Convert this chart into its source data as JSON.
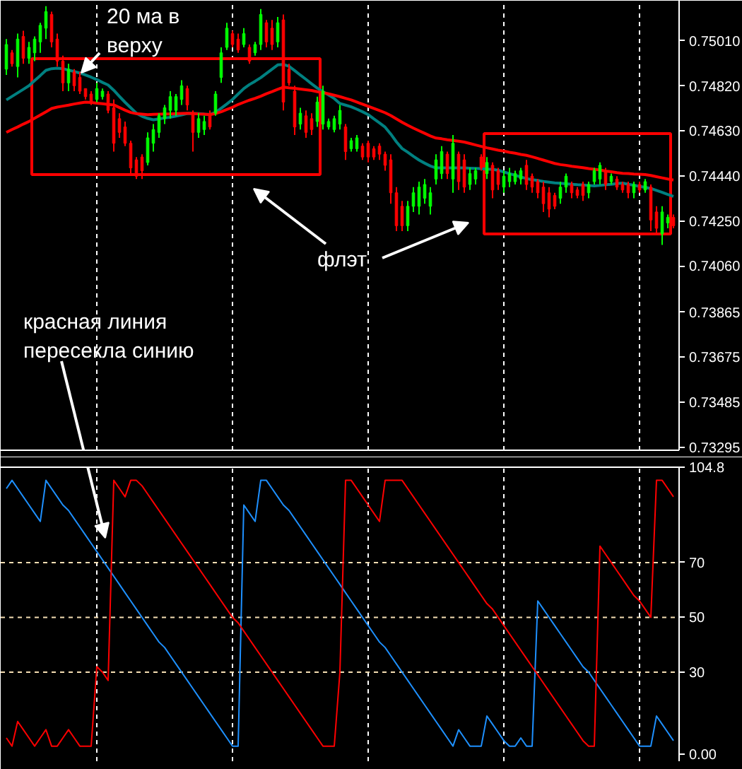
{
  "chart_data": [
    {
      "type": "candlestick",
      "categories": [
        null,
        null,
        null,
        null,
        null,
        null,
        null,
        null,
        null,
        null,
        null,
        null,
        null,
        null,
        null,
        null,
        null,
        null,
        null,
        null,
        null,
        null,
        null,
        null,
        null,
        null,
        null,
        null,
        null,
        null,
        null,
        null,
        null,
        null,
        null,
        null,
        null,
        null,
        null,
        null,
        null,
        null,
        null,
        null,
        null,
        null,
        null,
        null,
        null,
        null,
        null,
        null,
        null,
        null,
        null,
        null,
        null,
        null,
        null,
        null,
        null,
        null,
        null,
        null,
        null,
        null,
        null,
        null,
        null,
        null,
        null,
        null,
        null,
        null,
        null,
        null,
        null,
        null,
        null,
        null,
        null,
        null,
        null,
        null,
        null,
        null,
        null,
        null,
        null,
        null,
        null,
        null,
        null,
        null,
        null,
        null,
        null,
        null,
        null,
        null,
        null,
        null,
        null,
        null,
        null,
        null,
        null,
        null,
        null,
        null,
        null,
        null,
        null,
        null,
        null,
        null,
        null,
        null,
        null
      ],
      "ohlc": [
        [
          0.74891,
          0.75018,
          0.74867,
          0.74995
        ],
        [
          0.7496,
          0.74972,
          0.74902,
          0.74914
        ],
        [
          0.74902,
          0.75041,
          0.74856,
          0.75018
        ],
        [
          0.75029,
          0.75053,
          0.74914,
          0.74937
        ],
        [
          0.74937,
          0.75006,
          0.74914,
          0.74983
        ],
        [
          0.7496,
          0.75029,
          0.74925,
          0.75018
        ],
        [
          0.75006,
          0.75087,
          0.7496,
          0.75076
        ],
        [
          0.75064,
          0.75157,
          0.75018,
          0.75134
        ],
        [
          0.75122,
          0.75134,
          0.74983,
          0.75006
        ],
        [
          0.75018,
          0.75041,
          0.74902,
          0.74925
        ],
        [
          0.74925,
          0.74948,
          0.74798,
          0.74833
        ],
        [
          0.74833,
          0.74914,
          0.74798,
          0.74891
        ],
        [
          0.74879,
          0.74891,
          0.74798,
          0.74821
        ],
        [
          0.74856,
          0.74879,
          0.74786,
          0.74798
        ],
        [
          0.74809,
          0.74809,
          0.74763,
          0.74775
        ],
        [
          0.74786,
          0.74798,
          0.7474,
          0.74752
        ],
        [
          0.74763,
          0.74833,
          0.74752,
          0.74809
        ],
        [
          0.74775,
          0.74809,
          0.74763,
          0.74798
        ],
        [
          0.74786,
          0.74798,
          0.74705,
          0.74717
        ],
        [
          0.74728,
          0.74763,
          0.74543,
          0.74578
        ],
        [
          0.74682,
          0.74705,
          0.74601,
          0.74624
        ],
        [
          0.74647,
          0.7467,
          0.74566,
          0.74578
        ],
        [
          0.74578,
          0.74589,
          0.7445,
          0.74474
        ],
        [
          0.74508,
          0.7452,
          0.74427,
          0.74439
        ],
        [
          0.7452,
          0.74532,
          0.74427,
          0.74462
        ],
        [
          0.74497,
          0.74624,
          0.74485,
          0.74601
        ],
        [
          0.74578,
          0.74659,
          0.74543,
          0.74636
        ],
        [
          0.74624,
          0.74705,
          0.74601,
          0.74694
        ],
        [
          0.74682,
          0.7474,
          0.74659,
          0.74728
        ],
        [
          0.74717,
          0.74798,
          0.74682,
          0.74775
        ],
        [
          0.74717,
          0.74786,
          0.74694,
          0.74775
        ],
        [
          0.74763,
          0.74844,
          0.7474,
          0.74821
        ],
        [
          0.74809,
          0.74821,
          0.74717,
          0.7474
        ],
        [
          0.74705,
          0.74717,
          0.74543,
          0.74624
        ],
        [
          0.74624,
          0.74705,
          0.74601,
          0.74682
        ],
        [
          0.74636,
          0.74694,
          0.74613,
          0.7467
        ],
        [
          0.74694,
          0.74717,
          0.74636,
          0.74647
        ],
        [
          0.74705,
          0.74798,
          0.74694,
          0.74786
        ],
        [
          0.74856,
          0.74983,
          0.74833,
          0.7496
        ],
        [
          0.74983,
          0.75087,
          0.74972,
          0.75064
        ],
        [
          0.75041,
          0.75053,
          0.74983,
          0.74995
        ],
        [
          0.75018,
          0.75041,
          0.7496,
          0.74972
        ],
        [
          0.74995,
          0.75064,
          0.74983,
          0.75041
        ],
        [
          0.74983,
          0.74995,
          0.74914,
          0.74925
        ],
        [
          0.7496,
          0.75006,
          0.74948,
          0.74995
        ],
        [
          0.74995,
          0.75145,
          0.74972,
          0.75122
        ],
        [
          0.75087,
          0.75099,
          0.74983,
          0.75006
        ],
        [
          0.75064,
          0.75099,
          0.74972,
          0.74995
        ],
        [
          0.75006,
          0.75111,
          0.74983,
          0.75087
        ],
        [
          0.75099,
          0.75122,
          0.74717,
          0.74752
        ],
        [
          0.74891,
          0.74914,
          0.74821,
          0.74833
        ],
        [
          0.74798,
          0.74821,
          0.74613,
          0.74647
        ],
        [
          0.74659,
          0.74728,
          0.74636,
          0.74705
        ],
        [
          0.74694,
          0.74717,
          0.74601,
          0.74624
        ],
        [
          0.74682,
          0.74705,
          0.74613,
          0.74636
        ],
        [
          0.7467,
          0.74775,
          0.74647,
          0.74752
        ],
        [
          0.74659,
          0.74821,
          0.74636,
          0.74798
        ],
        [
          0.74647,
          0.74682,
          0.74636,
          0.7467
        ],
        [
          0.74636,
          0.74694,
          0.74624,
          0.74682
        ],
        [
          0.74659,
          0.7474,
          0.74636,
          0.74717
        ],
        [
          0.74647,
          0.74659,
          0.74508,
          0.74543
        ],
        [
          0.74555,
          0.74601,
          0.74543,
          0.74589
        ],
        [
          0.74555,
          0.74613,
          0.74543,
          0.74601
        ],
        [
          0.74566,
          0.74578,
          0.74508,
          0.7452
        ],
        [
          0.74578,
          0.74589,
          0.74497,
          0.7452
        ],
        [
          0.74555,
          0.74566,
          0.74508,
          0.7452
        ],
        [
          0.74566,
          0.74578,
          0.74508,
          0.74532
        ],
        [
          0.74532,
          0.74543,
          0.74462,
          0.74485
        ],
        [
          0.74508,
          0.74532,
          0.74323,
          0.74369
        ],
        [
          0.74369,
          0.74393,
          0.74207,
          0.7423
        ],
        [
          0.74312,
          0.74335,
          0.74207,
          0.7423
        ],
        [
          0.7423,
          0.74335,
          0.74207,
          0.74312
        ],
        [
          0.74312,
          0.74393,
          0.74288,
          0.74369
        ],
        [
          0.74312,
          0.74416,
          0.74277,
          0.74393
        ],
        [
          0.74346,
          0.74427,
          0.74323,
          0.74404
        ],
        [
          0.74312,
          0.74393,
          0.74277,
          0.74369
        ],
        [
          0.74427,
          0.74532,
          0.74404,
          0.74508
        ],
        [
          0.7445,
          0.74566,
          0.74427,
          0.74543
        ],
        [
          0.74532,
          0.74543,
          0.74427,
          0.7445
        ],
        [
          0.74427,
          0.74613,
          0.74369,
          0.74578
        ],
        [
          0.74532,
          0.74543,
          0.74381,
          0.74416
        ],
        [
          0.74508,
          0.74532,
          0.74369,
          0.74393
        ],
        [
          0.74404,
          0.74474,
          0.74381,
          0.7445
        ],
        [
          0.74427,
          0.74474,
          0.74404,
          0.74462
        ],
        [
          0.7452,
          0.74532,
          0.74462,
          0.74474
        ],
        [
          0.7445,
          0.7452,
          0.74427,
          0.74497
        ],
        [
          0.74485,
          0.74497,
          0.74346,
          0.74381
        ],
        [
          0.74462,
          0.74474,
          0.74381,
          0.74404
        ],
        [
          0.74393,
          0.74462,
          0.74369,
          0.74439
        ],
        [
          0.74416,
          0.74474,
          0.74393,
          0.7445
        ],
        [
          0.74416,
          0.74462,
          0.74404,
          0.7445
        ],
        [
          0.74427,
          0.74474,
          0.74404,
          0.74462
        ],
        [
          0.74485,
          0.74508,
          0.74381,
          0.74404
        ],
        [
          0.74439,
          0.7445,
          0.74369,
          0.74393
        ],
        [
          0.74416,
          0.74427,
          0.74346,
          0.74369
        ],
        [
          0.74393,
          0.74416,
          0.74288,
          0.74323
        ],
        [
          0.74369,
          0.74393,
          0.74265,
          0.743
        ],
        [
          0.74358,
          0.74369,
          0.743,
          0.74312
        ],
        [
          0.74346,
          0.74416,
          0.74323,
          0.74393
        ],
        [
          0.74393,
          0.7445,
          0.74369,
          0.74439
        ],
        [
          0.74404,
          0.74416,
          0.74346,
          0.74369
        ],
        [
          0.74381,
          0.74393,
          0.74346,
          0.74358
        ],
        [
          0.74404,
          0.74416,
          0.74335,
          0.74358
        ],
        [
          0.74369,
          0.74416,
          0.74346,
          0.74404
        ],
        [
          0.74416,
          0.74474,
          0.74404,
          0.74462
        ],
        [
          0.74427,
          0.74497,
          0.74404,
          0.74485
        ],
        [
          0.74462,
          0.74474,
          0.74381,
          0.74404
        ],
        [
          0.74416,
          0.7445,
          0.74404,
          0.74439
        ],
        [
          0.74427,
          0.74439,
          0.74381,
          0.74393
        ],
        [
          0.74404,
          0.74416,
          0.74369,
          0.74381
        ],
        [
          0.74404,
          0.74416,
          0.74346,
          0.74369
        ],
        [
          0.74369,
          0.74416,
          0.74346,
          0.74404
        ],
        [
          0.74404,
          0.74416,
          0.74369,
          0.74381
        ],
        [
          0.74381,
          0.74427,
          0.74369,
          0.74416
        ],
        [
          0.74393,
          0.74404,
          0.74207,
          0.74254
        ],
        [
          0.74288,
          0.74312,
          0.74196,
          0.74219
        ],
        [
          0.74196,
          0.74312,
          0.74149,
          0.74288
        ],
        [
          0.74242,
          0.74277,
          0.74219,
          0.74265
        ],
        [
          0.74265,
          0.74277,
          0.74219,
          0.7423
        ]
      ],
      "colors": [
        "#00ff00",
        "#ff0000",
        "#00ff00",
        "#ff0000",
        "#00ff00",
        "#00ff00",
        "#00ff00",
        "#00ff00",
        "#ff0000",
        "#ff0000",
        "#ff0000",
        "#00ff00",
        "#ff0000",
        "#ff0000",
        "#ff0000",
        "#ff0000",
        "#00ff00",
        "#00ff00",
        "#ff0000",
        "#ff0000",
        "#ff0000",
        "#ff0000",
        "#ff0000",
        "#ff0000",
        "#ff0000",
        "#00ff00",
        "#00ff00",
        "#00ff00",
        "#00ff00",
        "#00ff00",
        "#00ff00",
        "#00ff00",
        "#ff0000",
        "#ff0000",
        "#00ff00",
        "#00ff00",
        "#ff0000",
        "#00ff00",
        "#00ff00",
        "#00ff00",
        "#ff0000",
        "#ff0000",
        "#00ff00",
        "#ff0000",
        "#00ff00",
        "#00ff00",
        "#ff0000",
        "#ff0000",
        "#00ff00",
        "#ff0000",
        "#ff0000",
        "#ff0000",
        "#00ff00",
        "#ff0000",
        "#ff0000",
        "#00ff00",
        "#00ff00",
        "#00ff00",
        "#00ff00",
        "#00ff00",
        "#ff0000",
        "#00ff00",
        "#00ff00",
        "#ff0000",
        "#ff0000",
        "#ff0000",
        "#ff0000",
        "#ff0000",
        "#ff0000",
        "#ff0000",
        "#ff0000",
        "#00ff00",
        "#00ff00",
        "#00ff00",
        "#00ff00",
        "#00ff00",
        "#00ff00",
        "#00ff00",
        "#ff0000",
        "#00ff00",
        "#ff0000",
        "#ff0000",
        "#00ff00",
        "#00ff00",
        "#ff0000",
        "#00ff00",
        "#ff0000",
        "#ff0000",
        "#00ff00",
        "#00ff00",
        "#00ff00",
        "#00ff00",
        "#ff0000",
        "#ff0000",
        "#ff0000",
        "#ff0000",
        "#ff0000",
        "#ff0000",
        "#00ff00",
        "#00ff00",
        "#ff0000",
        "#ff0000",
        "#ff0000",
        "#00ff00",
        "#00ff00",
        "#00ff00",
        "#ff0000",
        "#00ff00",
        "#ff0000",
        "#ff0000",
        "#ff0000",
        "#00ff00",
        "#ff0000",
        "#00ff00",
        "#ff0000",
        "#ff0000",
        "#00ff00",
        "#00ff00",
        "#ff0000"
      ],
      "ylim": [
        0.73282,
        0.7518
      ],
      "yticks": [
        {
          "value": 0.7501,
          "label": "0.75010"
        },
        {
          "value": 0.7482,
          "label": "0.74820"
        },
        {
          "value": 0.7463,
          "label": "0.74630"
        },
        {
          "value": 0.7444,
          "label": "0.74440"
        },
        {
          "value": 0.7425,
          "label": "0.74250"
        },
        {
          "value": 0.7406,
          "label": "0.74060"
        },
        0.73865,
        0.73675,
        0.73485,
        0.73295
      ],
      "tick_labels": "y",
      "grid": "x",
      "series": [
        {
          "type": "line",
          "color": "#008080",
          "values": [
            0.74761,
            0.74776,
            0.74791,
            0.74806,
            0.74821,
            0.74843,
            0.74864,
            0.74886,
            0.74893,
            0.74895,
            0.74893,
            0.74887,
            0.74881,
            0.74875,
            0.74866,
            0.74857,
            0.74847,
            0.74835,
            0.74824,
            0.74802,
            0.74776,
            0.74751,
            0.74728,
            0.74705,
            0.74692,
            0.74683,
            0.74677,
            0.74681,
            0.74685,
            0.74688,
            0.74693,
            0.74698,
            0.74704,
            0.74704,
            0.74703,
            0.74701,
            0.747,
            0.74708,
            0.74726,
            0.74744,
            0.74763,
            0.74786,
            0.74809,
            0.74826,
            0.7484,
            0.74855,
            0.74873,
            0.74891,
            0.74909,
            0.74911,
            0.74903,
            0.74885,
            0.74866,
            0.74848,
            0.74829,
            0.74811,
            0.74796,
            0.74782,
            0.74767,
            0.74746,
            0.74739,
            0.74732,
            0.74722,
            0.74711,
            0.74699,
            0.74681,
            0.74664,
            0.74646,
            0.74617,
            0.74584,
            0.74556,
            0.7454,
            0.74523,
            0.74507,
            0.74494,
            0.74482,
            0.74474,
            0.74474,
            0.74474,
            0.74474,
            0.74474,
            0.74474,
            0.74473,
            0.74472,
            0.74471,
            0.74469,
            0.74468,
            0.74464,
            0.74457,
            0.7445,
            0.74443,
            0.74436,
            0.74429,
            0.74424,
            0.74421,
            0.74417,
            0.74414,
            0.74411,
            0.74409,
            0.74407,
            0.74405,
            0.74403,
            0.74402,
            0.744,
            0.74398,
            0.744,
            0.74403,
            0.74405,
            0.74408,
            0.7441,
            0.74405,
            0.74401,
            0.74396,
            0.74392,
            0.74387,
            0.74379,
            0.74371,
            0.74362,
            0.74354
          ]
        },
        {
          "type": "line",
          "color": "#ff0000",
          "values": [
            0.74624,
            0.74636,
            0.74647,
            0.74659,
            0.7467,
            0.74684,
            0.74697,
            0.74711,
            0.74725,
            0.74731,
            0.74735,
            0.74739,
            0.74744,
            0.74748,
            0.74752,
            0.7475,
            0.74747,
            0.74745,
            0.74742,
            0.7474,
            0.74729,
            0.74718,
            0.74708,
            0.74703,
            0.74701,
            0.74699,
            0.747,
            0.74701,
            0.74702,
            0.74702,
            0.74703,
            0.74704,
            0.74705,
            0.74704,
            0.74702,
            0.74701,
            0.74699,
            0.74704,
            0.74711,
            0.74721,
            0.7473,
            0.74742,
            0.74751,
            0.7476,
            0.74768,
            0.74777,
            0.74787,
            0.74796,
            0.74806,
            0.74815,
            0.74812,
            0.7481,
            0.74807,
            0.74804,
            0.74801,
            0.74796,
            0.74792,
            0.74787,
            0.74781,
            0.74775,
            0.74768,
            0.74761,
            0.74752,
            0.74743,
            0.74734,
            0.74725,
            0.74716,
            0.74707,
            0.74695,
            0.74681,
            0.74667,
            0.74654,
            0.74642,
            0.74631,
            0.7462,
            0.74609,
            0.746,
            0.74597,
            0.74593,
            0.7459,
            0.74587,
            0.74583,
            0.74577,
            0.74571,
            0.74565,
            0.74559,
            0.74554,
            0.74549,
            0.74545,
            0.7454,
            0.74536,
            0.74531,
            0.74527,
            0.74521,
            0.74514,
            0.74507,
            0.745,
            0.74493,
            0.74488,
            0.74485,
            0.74481,
            0.74478,
            0.74475,
            0.74471,
            0.74468,
            0.74465,
            0.74461,
            0.74458,
            0.74454,
            0.74451,
            0.7445,
            0.74448,
            0.74447,
            0.74446,
            0.74442,
            0.74437,
            0.74432,
            0.74427,
            0.74423
          ]
        }
      ],
      "annotations": [
        "20 ма в\nверху",
        "флэт"
      ]
    },
    {
      "type": "line",
      "categories": [
        null,
        null,
        null,
        null,
        null,
        null,
        null,
        null,
        null,
        null,
        null,
        null,
        null,
        null,
        null,
        null,
        null,
        null,
        null,
        null,
        null,
        null,
        null,
        null,
        null,
        null,
        null,
        null,
        null,
        null,
        null,
        null,
        null,
        null,
        null,
        null,
        null,
        null,
        null,
        null,
        null,
        null,
        null,
        null,
        null,
        null,
        null,
        null,
        null,
        null,
        null,
        null,
        null,
        null,
        null,
        null,
        null,
        null,
        null,
        null,
        null,
        null,
        null,
        null,
        null,
        null,
        null,
        null,
        null,
        null,
        null,
        null,
        null,
        null,
        null,
        null,
        null,
        null,
        null,
        null,
        null,
        null,
        null,
        null,
        null,
        null,
        null,
        null,
        null,
        null,
        null,
        null,
        null,
        null,
        null,
        null,
        null,
        null,
        null,
        null,
        null,
        null,
        null,
        null,
        null,
        null,
        null,
        null,
        null,
        null,
        null,
        null,
        null,
        null,
        null,
        null,
        null,
        null,
        null
      ],
      "ylim": [
        -2.5,
        104.8
      ],
      "yticks": [
        {
          "value": 0,
          "label": "0.00"
        },
        30,
        50,
        70,
        104.8
      ],
      "tick_labels": "y",
      "grid": "x",
      "series": [
        {
          "color": "#1e90ff",
          "values": [
            97,
            100,
            97,
            94,
            91,
            88,
            85,
            100,
            97,
            94,
            91,
            89,
            86,
            83,
            80,
            77,
            74,
            71,
            68,
            65,
            62,
            59,
            56,
            53,
            50,
            47,
            44,
            41,
            39,
            36,
            33,
            30,
            27,
            24,
            21,
            18,
            15,
            12,
            9,
            6,
            3,
            3,
            91,
            88,
            85,
            100,
            100,
            97,
            94,
            91,
            89,
            86,
            83,
            80,
            77,
            74,
            71,
            68,
            65,
            62,
            59,
            56,
            53,
            50,
            47,
            44,
            41,
            39,
            36,
            33,
            30,
            27,
            24,
            21,
            18,
            15,
            12,
            9,
            6,
            3,
            9,
            6,
            3,
            3,
            3,
            14,
            11,
            8,
            5,
            3,
            3,
            6,
            3,
            3,
            56,
            53,
            50,
            47,
            44,
            41,
            38,
            35,
            32,
            30,
            27,
            24,
            21,
            18,
            15,
            12,
            9,
            6,
            3,
            3,
            3,
            14,
            11,
            8,
            5
          ]
        },
        {
          "color": "#ff0000",
          "values": [
            6,
            3,
            12,
            9,
            6,
            3,
            6,
            9,
            3,
            3,
            6,
            9,
            6,
            3,
            3,
            3,
            32,
            30,
            27,
            100,
            97,
            94,
            100,
            100,
            98,
            95,
            92,
            89,
            86,
            83,
            80,
            77,
            74,
            71,
            68,
            65,
            62,
            59,
            56,
            53,
            50,
            48,
            45,
            42,
            39,
            36,
            33,
            30,
            27,
            24,
            21,
            18,
            15,
            12,
            9,
            6,
            3,
            3,
            3,
            30,
            100,
            100,
            97,
            94,
            91,
            88,
            85,
            100,
            100,
            100,
            100,
            97,
            94,
            91,
            88,
            85,
            82,
            79,
            76,
            73,
            70,
            67,
            64,
            61,
            58,
            55,
            53,
            50,
            47,
            44,
            41,
            38,
            35,
            32,
            29,
            26,
            23,
            20,
            17,
            14,
            11,
            8,
            5,
            3,
            3,
            76,
            73,
            70,
            67,
            64,
            61,
            58,
            56,
            53,
            50,
            100,
            100,
            97,
            94
          ]
        }
      ],
      "ref_lines": [
        {
          "axis": "y",
          "value": 70,
          "color": "#f5deb3",
          "line_style": "dashed"
        },
        {
          "axis": "y",
          "value": 50,
          "color": "#f5deb3",
          "line_style": "dashed"
        },
        {
          "axis": "y",
          "value": 30,
          "color": "#f5deb3",
          "line_style": "dashed"
        }
      ],
      "annotations": [
        "красная линия\nпересекла синию"
      ]
    }
  ]
}
